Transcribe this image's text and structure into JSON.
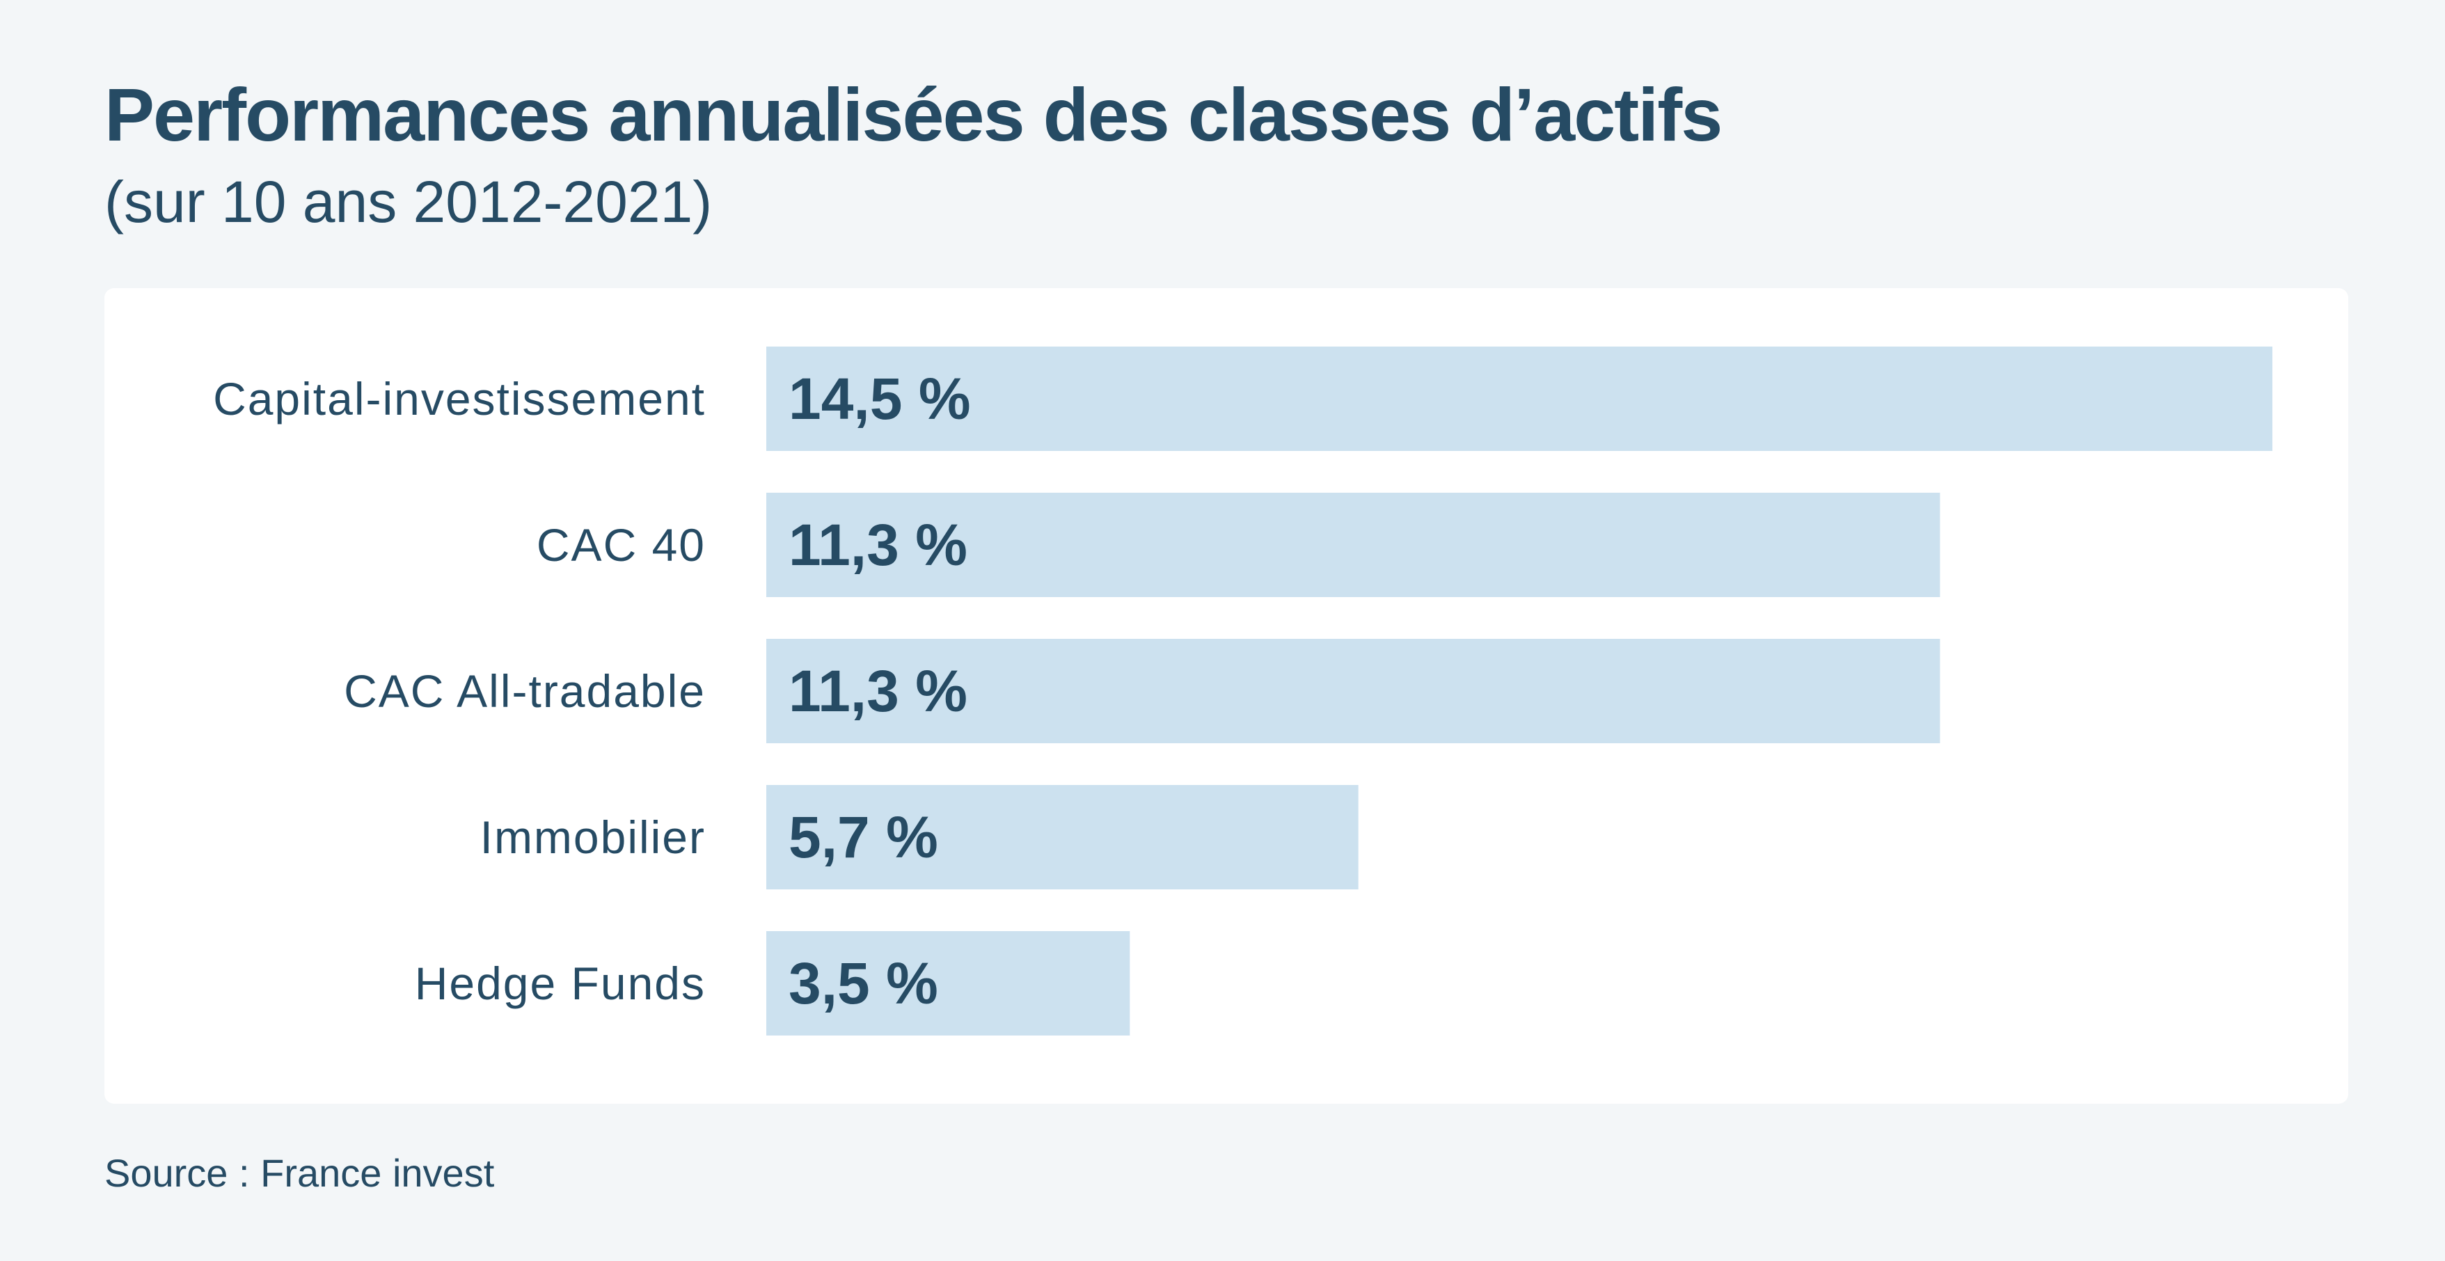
{
  "colors": {
    "page_background": "#f3f6f8",
    "panel_background": "#ffffff",
    "bar": "#cce1ef",
    "text": "#264b64"
  },
  "header": {
    "title": "Performances annualisées des classes d’actifs",
    "subtitle": "(sur 10 ans 2012-2021)"
  },
  "footer": {
    "source": "Source : France invest"
  },
  "chart_data": {
    "type": "bar",
    "orientation": "horizontal",
    "categories": [
      "Capital-investissement",
      "CAC 40",
      "CAC All-tradable",
      "Immobilier",
      "Hedge Funds"
    ],
    "values": [
      14.5,
      11.3,
      11.3,
      5.7,
      3.5
    ],
    "value_labels": [
      "14,5 %",
      "11,3 %",
      "11,3 %",
      "5,7 %",
      "3,5 %"
    ],
    "xlim": [
      0,
      14.5
    ],
    "grid": false,
    "legend": "none"
  }
}
